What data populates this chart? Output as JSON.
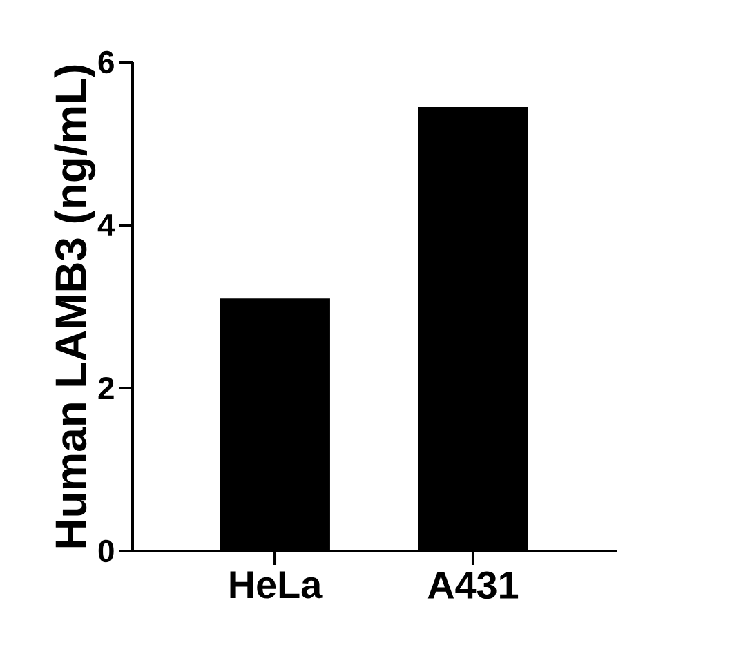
{
  "chart_data": {
    "type": "bar",
    "ylabel": "Human LAMB3 (ng/mL)",
    "categories": [
      "HeLa",
      "A431"
    ],
    "values": [
      3.1,
      5.45
    ],
    "color": "#000000",
    "ylim": [
      0,
      6
    ],
    "yticks": [
      0,
      2,
      4,
      6
    ]
  }
}
